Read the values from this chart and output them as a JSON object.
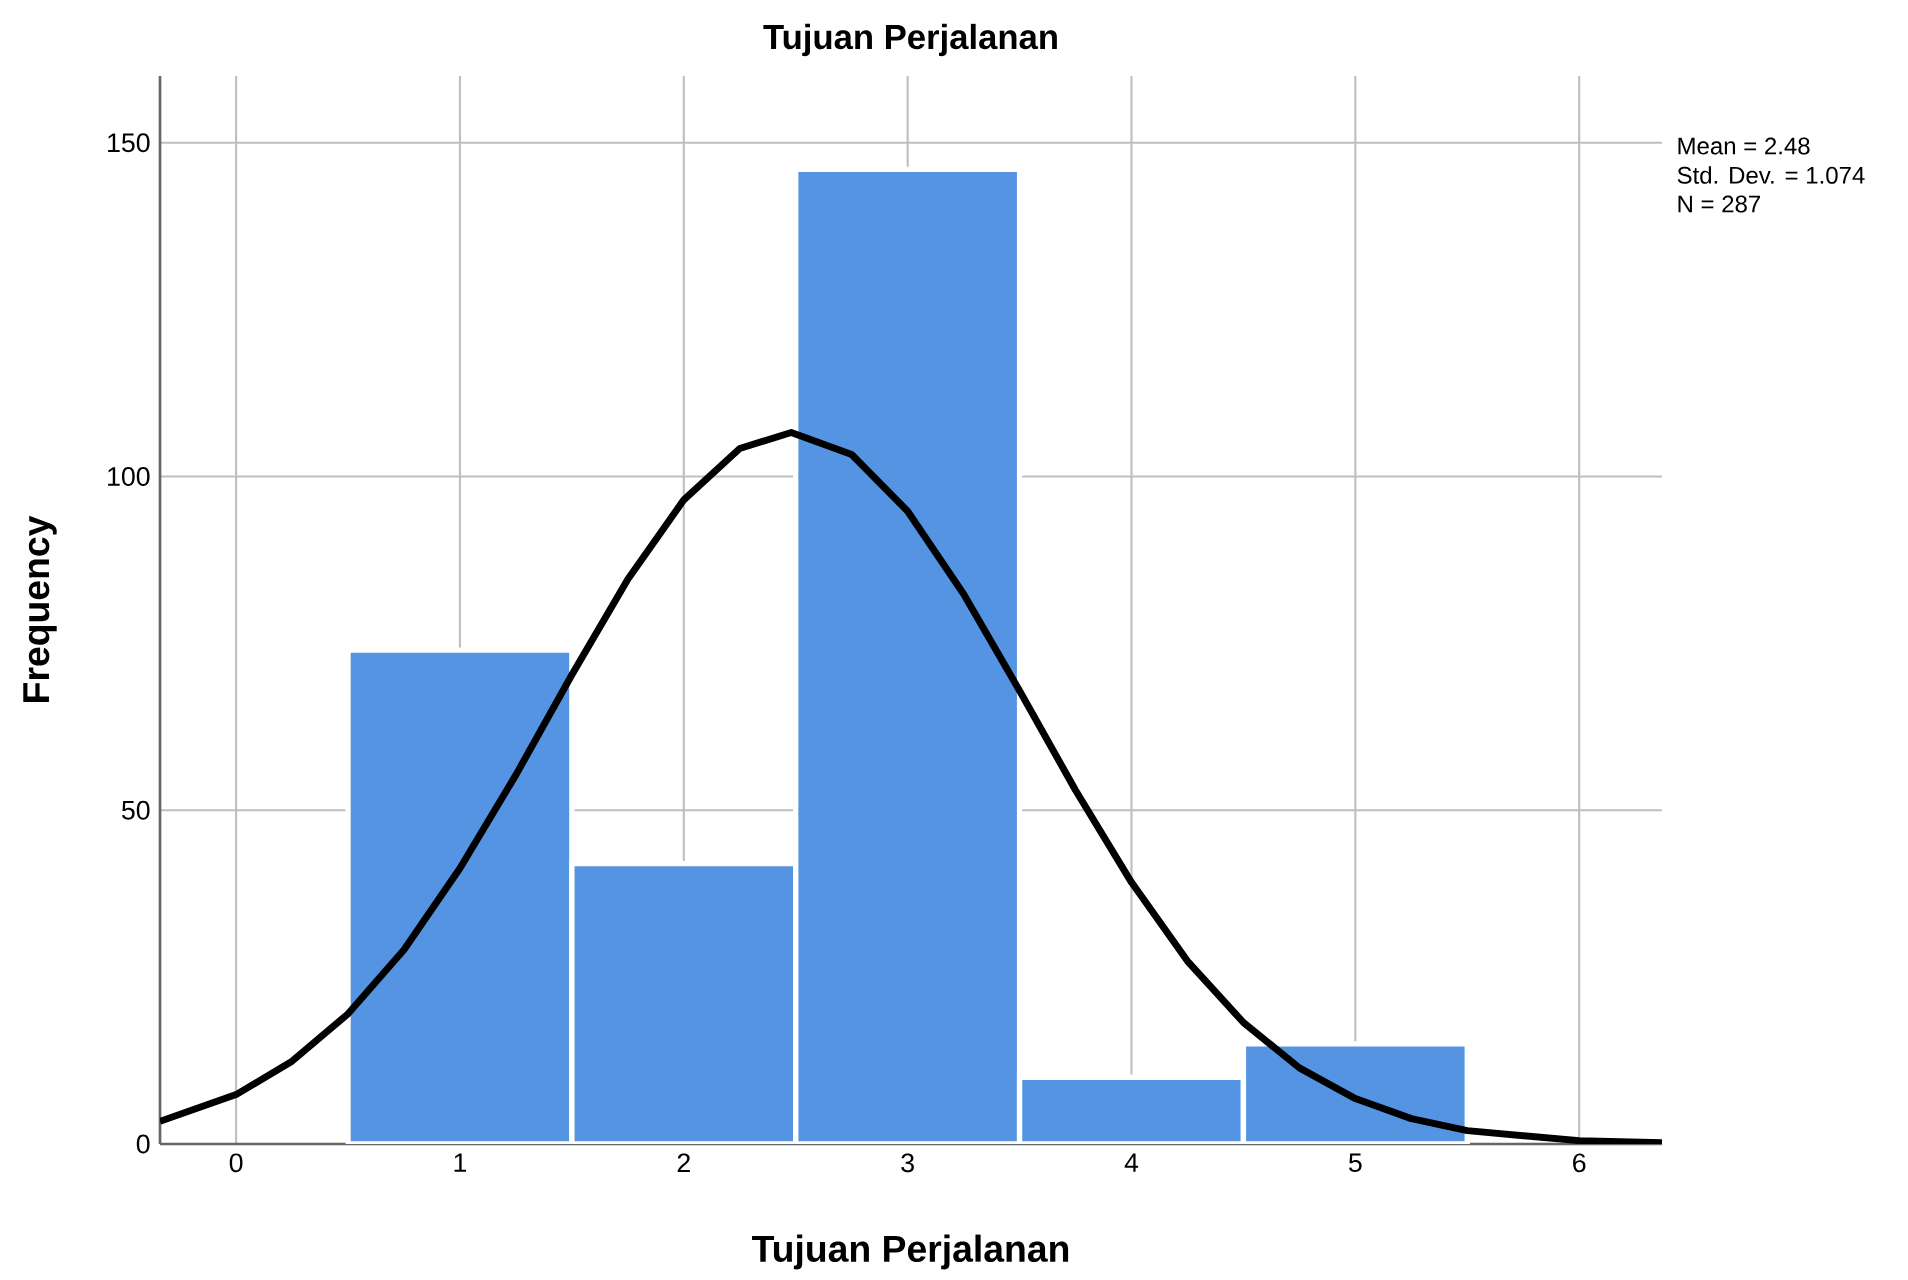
{
  "chart_data": {
    "type": "histogram",
    "title": "Tujuan Perjalanan",
    "xlabel": "Tujuan Perjalanan",
    "ylabel": "Frequency",
    "bins": [
      0.5,
      1.5,
      2.5,
      3.5,
      4.5,
      5.5
    ],
    "values": [
      74,
      42,
      146,
      10,
      15
    ],
    "color": "#5594e2",
    "series": [
      {
        "type": "line",
        "color": "#000000",
        "x": [
          -0.34,
          0,
          0.25,
          0.5,
          0.75,
          1,
          1.25,
          1.5,
          1.75,
          2,
          2.25,
          2.48,
          2.75,
          3,
          3.25,
          3.5,
          3.75,
          4,
          4.25,
          4.5,
          4.75,
          5,
          5.25,
          5.5,
          6,
          6.37
        ],
        "values": [
          3.4,
          7.4,
          12.4,
          19.5,
          29.1,
          41.3,
          55.3,
          70.3,
          84.6,
          96.5,
          104.2,
          106.6,
          103.3,
          94.8,
          82.4,
          67.9,
          53.0,
          39.2,
          27.4,
          18.2,
          11.4,
          6.8,
          3.8,
          2.0,
          0.5,
          0.2
        ]
      }
    ],
    "xlim": [
      -0.34,
      6.37
    ],
    "ylim": [
      0,
      160
    ],
    "xticks": [
      0,
      1,
      2,
      3,
      4,
      5,
      6
    ],
    "yticks": [
      0,
      50,
      100,
      150
    ],
    "grid": true,
    "annotations": [
      "Mean = 2.48",
      "Std. Dev. = 1.074",
      "N = 287"
    ]
  }
}
